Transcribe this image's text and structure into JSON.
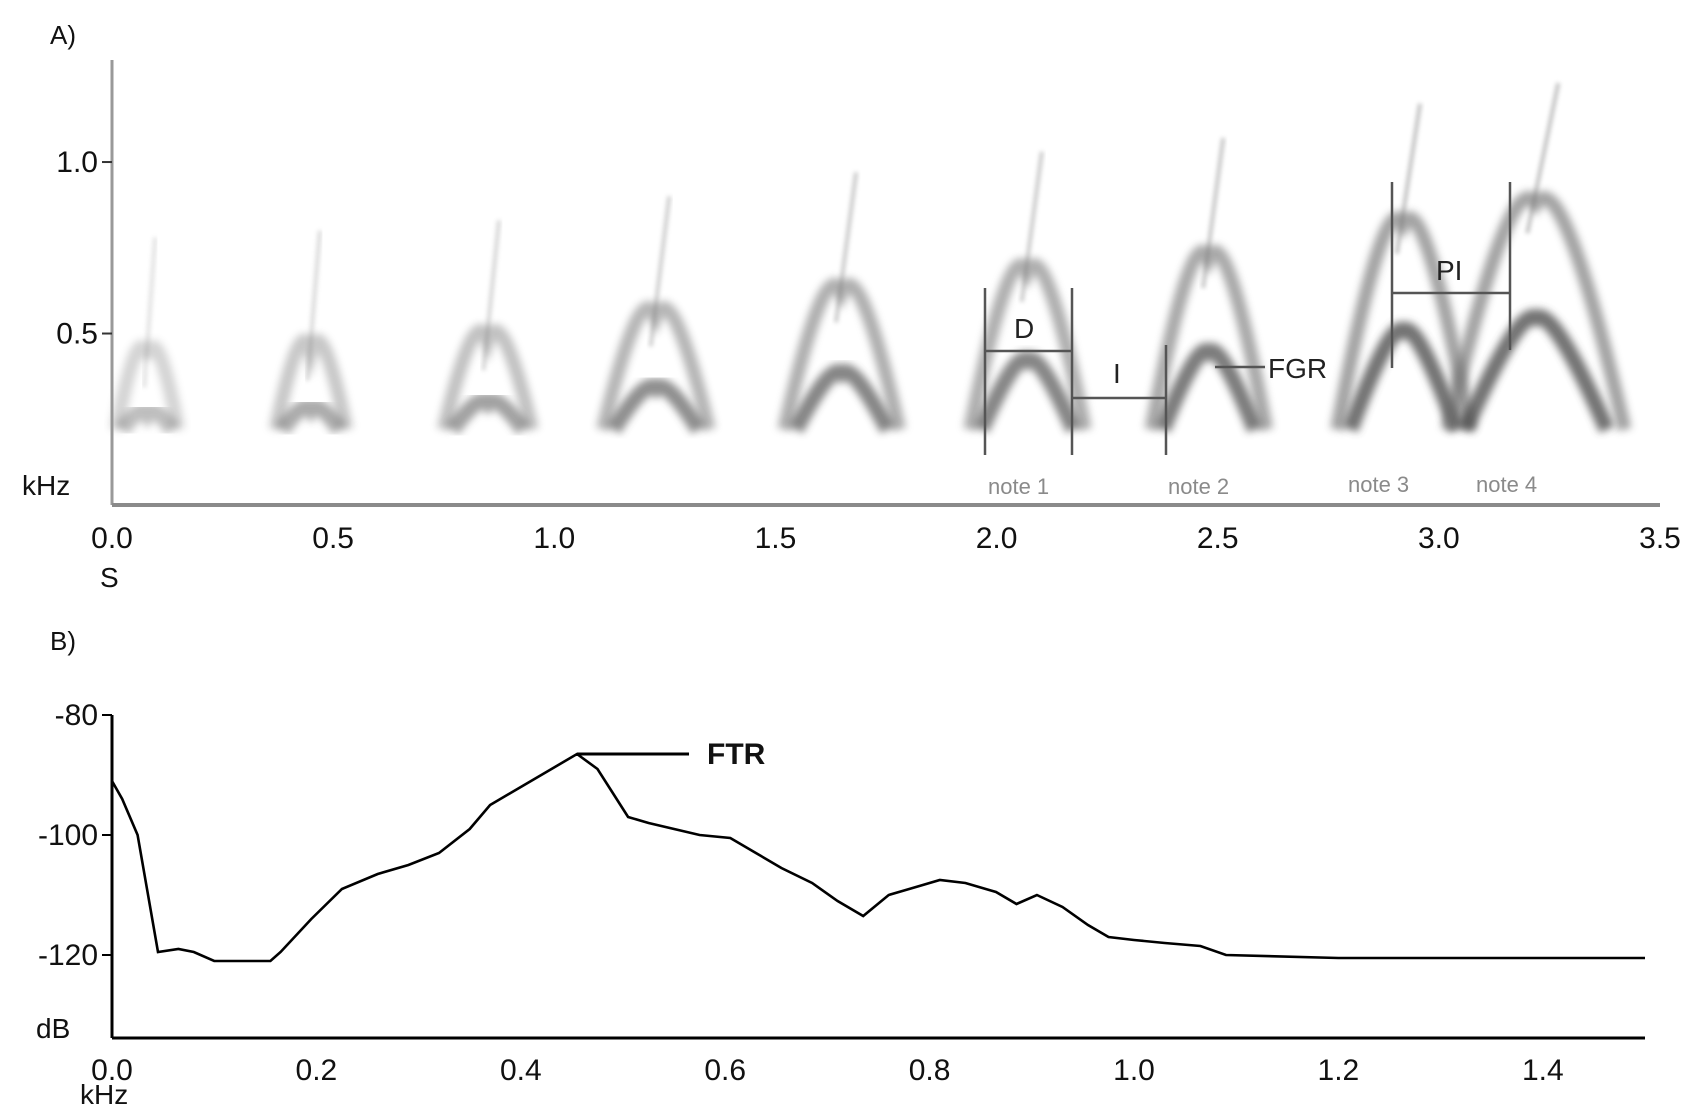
{
  "chart_data": [
    {
      "panel_label": "A)",
      "type": "heatmap",
      "xlabel": "S",
      "ylabel": "kHz",
      "xlim": [
        0,
        3.5
      ],
      "ylim": [
        0,
        1.35
      ],
      "x_ticks": [
        "0.0",
        "0.5",
        "1.0",
        "1.5",
        "2.0",
        "2.5",
        "3.0",
        "3.5"
      ],
      "x_tick_values": [
        0,
        0.5,
        1.0,
        1.5,
        2.0,
        2.5,
        3.0,
        3.5
      ],
      "y_ticks": [
        "0.5",
        "1.0"
      ],
      "y_tick_values": [
        0.5,
        1.0
      ],
      "notes": [
        {
          "t": 0.08,
          "f": 0.43,
          "w": 0.07,
          "amp": 0.35
        },
        {
          "t": 0.45,
          "f": 0.45,
          "w": 0.08,
          "amp": 0.45
        },
        {
          "t": 0.85,
          "f": 0.48,
          "w": 0.1,
          "amp": 0.5
        },
        {
          "t": 1.23,
          "f": 0.55,
          "w": 0.12,
          "amp": 0.6
        },
        {
          "t": 1.65,
          "f": 0.62,
          "w": 0.13,
          "amp": 0.65
        },
        {
          "t": 2.07,
          "f": 0.68,
          "w": 0.13,
          "amp": 0.65
        },
        {
          "t": 2.48,
          "f": 0.72,
          "w": 0.13,
          "amp": 0.7
        },
        {
          "t": 2.92,
          "f": 0.82,
          "w": 0.15,
          "amp": 0.75
        },
        {
          "t": 3.22,
          "f": 0.88,
          "w": 0.2,
          "amp": 0.75
        }
      ],
      "annotations": {
        "d": "D",
        "i": "I",
        "pi": "PI",
        "fgr": "FGR",
        "note_labels": [
          "note 1",
          "note 2",
          "note 3",
          "note 4"
        ]
      }
    },
    {
      "panel_label": "B)",
      "type": "line",
      "xlabel": "kHz",
      "ylabel": "dB",
      "xlim": [
        0,
        1.5
      ],
      "ylim": [
        -130,
        -80
      ],
      "x_ticks": [
        "0.0",
        "0.2",
        "0.4",
        "0.6",
        "0.8",
        "1.0",
        "1.2",
        "1.4"
      ],
      "x_tick_values": [
        0,
        0.2,
        0.4,
        0.6,
        0.8,
        1.0,
        1.2,
        1.4
      ],
      "y_ticks": [
        "-80",
        "-100",
        "-120"
      ],
      "y_tick_values": [
        -80,
        -100,
        -120
      ],
      "series": [
        {
          "x": [
            0.0,
            0.01,
            0.025,
            0.045,
            0.065,
            0.08,
            0.1,
            0.125,
            0.155,
            0.165,
            0.195,
            0.225,
            0.26,
            0.29,
            0.32,
            0.35,
            0.37,
            0.4,
            0.43,
            0.455,
            0.475,
            0.49,
            0.505,
            0.525,
            0.55,
            0.575,
            0.605,
            0.63,
            0.655,
            0.685,
            0.71,
            0.735,
            0.76,
            0.79,
            0.81,
            0.835,
            0.865,
            0.885,
            0.905,
            0.93,
            0.955,
            0.975,
            1.0,
            1.03,
            1.065,
            1.09,
            1.2,
            1.3,
            1.4,
            1.5
          ],
          "y": [
            -91,
            -94,
            -100,
            -119.5,
            -119,
            -119.5,
            -121,
            -121,
            -121,
            -119.5,
            -114,
            -109,
            -106.5,
            -105,
            -103,
            -99,
            -95,
            -92,
            -89,
            -86.5,
            -89,
            -93,
            -97,
            -98,
            -99,
            -100,
            -100.5,
            -103,
            -105.5,
            -108,
            -111,
            -113.5,
            -110,
            -108.5,
            -107.5,
            -108,
            -109.5,
            -111.5,
            -110,
            -112,
            -115,
            -117,
            -117.5,
            -118,
            -118.5,
            -120,
            -120.5,
            -120.5,
            -120.5,
            -120.5
          ]
        }
      ],
      "annotations": {
        "ftr": "FTR",
        "ftr_x": 0.455,
        "ftr_y": -86.5
      }
    }
  ]
}
